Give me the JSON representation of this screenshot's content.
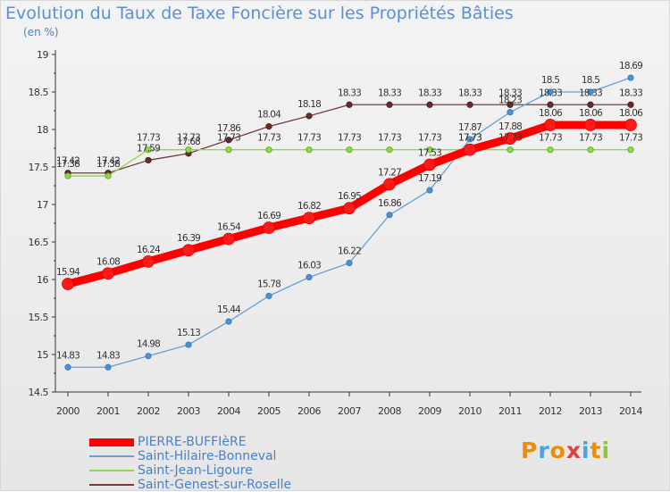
{
  "header": {
    "title": "Evolution du Taux de Taxe Foncière sur les Propriétés Bâties",
    "unit": "(en %)"
  },
  "logo": {
    "letters": [
      "P",
      "r",
      "o",
      "x",
      "i",
      "t",
      "i"
    ],
    "colors": [
      "#f08c00",
      "#4aa4e0",
      "#f08c00",
      "#e04040",
      "#4aa4e0",
      "#f08c00",
      "#8cc63f"
    ]
  },
  "chart_data": {
    "type": "line",
    "x": [
      "2000",
      "2001",
      "2002",
      "2003",
      "2004",
      "2005",
      "2006",
      "2007",
      "2008",
      "2009",
      "2010",
      "2011",
      "2012",
      "2013",
      "2014"
    ],
    "ylim": [
      14.5,
      19
    ],
    "yticks": [
      "14.5",
      "15",
      "15.5",
      "16",
      "16.5",
      "17",
      "17.5",
      "18",
      "18.5",
      "19"
    ],
    "grid": false,
    "legend_position": "bottom-left",
    "series": [
      {
        "name": "PIERRE-BUFFIèRE",
        "color": "#ff0000",
        "values": [
          15.94,
          16.08,
          16.24,
          16.39,
          16.54,
          16.69,
          16.82,
          16.95,
          17.27,
          17.53,
          17.73,
          17.88,
          18.06,
          18.06,
          18.06
        ],
        "labels": [
          "15.94",
          "16.08",
          "16.24",
          "16.39",
          "16.54",
          "16.69",
          "16.82",
          "16.95",
          "17.27",
          "17.53",
          "17.73",
          "17.88",
          "18.06",
          "18.06",
          "18.06"
        ]
      },
      {
        "name": "Saint-Hilaire-Bonneval",
        "color": "#6a9fd4",
        "values": [
          14.83,
          14.83,
          14.98,
          15.13,
          15.44,
          15.78,
          16.03,
          16.22,
          16.86,
          17.19,
          17.87,
          18.23,
          18.5,
          18.5,
          18.69
        ],
        "labels": [
          "14.83",
          "14.83",
          "14.98",
          "15.13",
          "15.44",
          "15.78",
          "16.03",
          "16.22",
          "16.86",
          "17.19",
          "17.87",
          "18.23",
          "18.5",
          "18.5",
          "18.69"
        ]
      },
      {
        "name": "Saint-Jean-Ligoure",
        "color": "#8fd84a",
        "values": [
          17.38,
          17.38,
          17.73,
          17.73,
          17.73,
          17.73,
          17.73,
          17.73,
          17.73,
          17.73,
          17.73,
          17.73,
          17.73,
          17.73,
          17.73
        ],
        "labels": [
          "17.38",
          "17.38",
          "17.73",
          "17.73",
          "17.73",
          "17.73",
          "17.73",
          "17.73",
          "17.73",
          "17.73",
          "17.73",
          "17.73",
          "17.73",
          "17.73",
          "17.73"
        ]
      },
      {
        "name": "Saint-Genest-sur-Roselle",
        "color": "#7a3a3a",
        "values": [
          17.42,
          17.42,
          17.59,
          17.68,
          17.86,
          18.04,
          18.18,
          18.33,
          18.33,
          18.33,
          18.33,
          18.33,
          18.33,
          18.33,
          18.33
        ],
        "labels": [
          "17.42",
          "17.42",
          "17.59",
          "17.68",
          "17.86",
          "18.04",
          "18.18",
          "18.33",
          "18.33",
          "18.33",
          "18.33",
          "18.33",
          "18.33",
          "18.33",
          "18.33"
        ]
      }
    ]
  }
}
